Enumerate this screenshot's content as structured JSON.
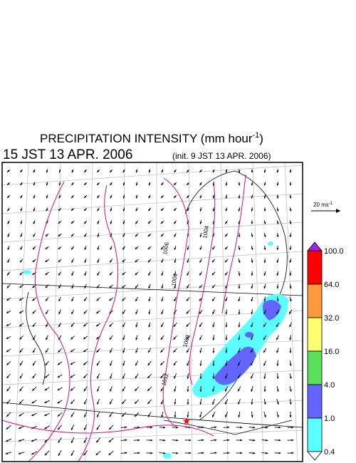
{
  "header": {
    "title": "PRECIPITATION INTENSITY (mm hour",
    "title_exponent": "-1",
    "title_close": ")",
    "valid_time": "15 JST 13 APR. 2006",
    "init_time": "(init. 9 JST 13 APR. 2006)"
  },
  "reference_vector": {
    "label": "20 ms",
    "exponent": "-1"
  },
  "isobar_labels": [
    "1004",
    "1006",
    "1006",
    "1008",
    "1012"
  ],
  "legend": {
    "levels": [
      {
        "label": "100.0",
        "color": "#ff0000"
      },
      {
        "label": "64.0",
        "color": "#ff9a3c"
      },
      {
        "label": "32.0",
        "color": "#ffff70"
      },
      {
        "label": "16.0",
        "color": "#5ce05c"
      },
      {
        "label": "4.0",
        "color": "#6464ff"
      },
      {
        "label": "1.0",
        "color": "#5cffff"
      },
      {
        "label": "0.4",
        "color": "#ffffff"
      }
    ],
    "top_color": "#a020f0"
  }
}
